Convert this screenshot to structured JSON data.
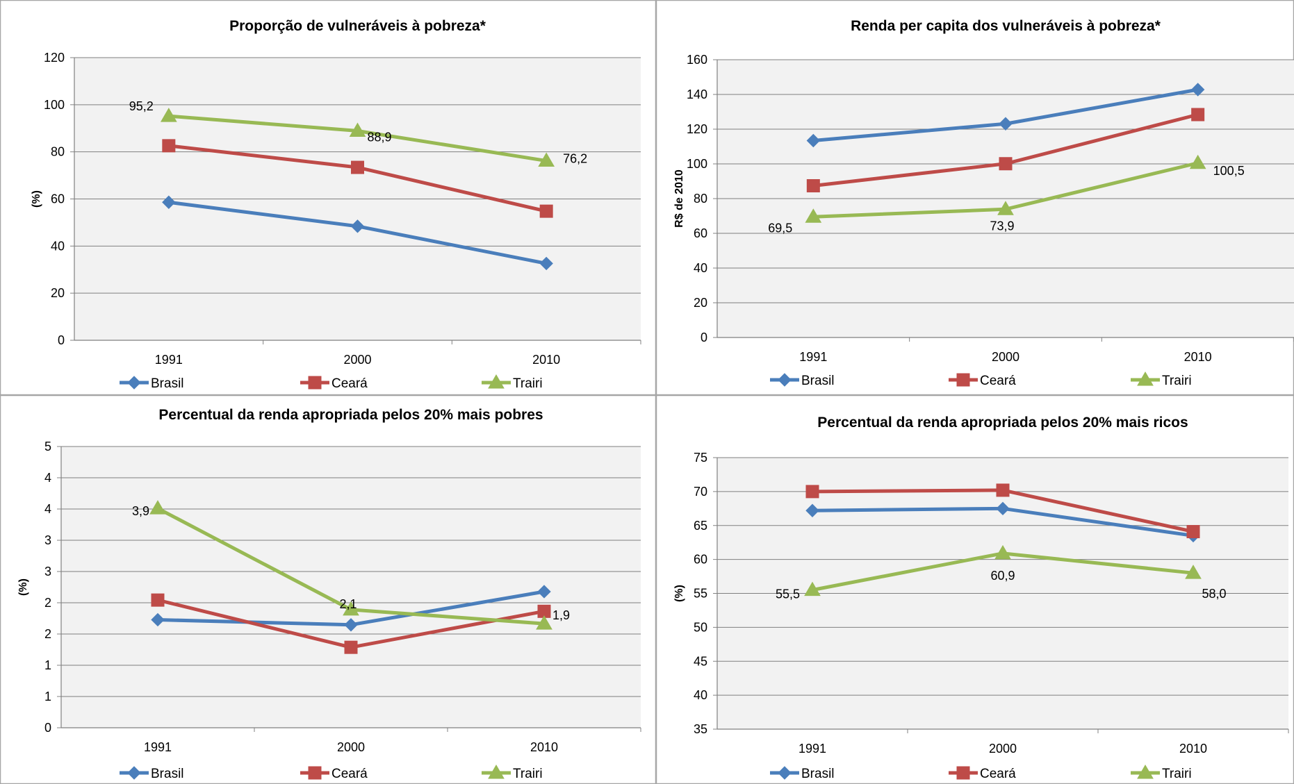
{
  "colors": {
    "Brasil": "#4a7ebb",
    "Ceará": "#be4b48",
    "Trairi": "#98b954",
    "plot_bg": "#f2f2f2",
    "grid": "#7f7f7f",
    "border": "#a6a6a6"
  },
  "chart_data": [
    {
      "type": "line",
      "title": "Proporção de vulneráveis à pobreza*",
      "xlabel": "",
      "ylabel": "(%)",
      "categories": [
        "1991",
        "2000",
        "2010"
      ],
      "ylim": [
        0,
        120
      ],
      "yticks": [
        "0",
        "20",
        "40",
        "60",
        "80",
        "100",
        "120"
      ],
      "grid": true,
      "legend": "bottom",
      "series": [
        {
          "name": "Brasil",
          "values": [
            58.6,
            48.4,
            32.6
          ],
          "marker": "diamond",
          "labels": [
            "",
            "",
            ""
          ]
        },
        {
          "name": "Ceará",
          "values": [
            82.6,
            73.4,
            54.8
          ],
          "marker": "square",
          "labels": [
            "",
            "",
            ""
          ]
        },
        {
          "name": "Trairi",
          "values": [
            95.2,
            88.9,
            76.2
          ],
          "marker": "triangle",
          "labels": [
            "95,2",
            "88,9",
            "76,2"
          ]
        }
      ]
    },
    {
      "type": "line",
      "title": "Renda per capita dos vulneráveis à pobreza*",
      "xlabel": "",
      "ylabel": "R$ de 2010",
      "categories": [
        "1991",
        "2000",
        "2010"
      ],
      "ylim": [
        0,
        160
      ],
      "yticks": [
        "0",
        "20",
        "40",
        "60",
        "80",
        "100",
        "120",
        "140",
        "160"
      ],
      "grid": true,
      "legend": "bottom",
      "series": [
        {
          "name": "Brasil",
          "values": [
            113.4,
            123.1,
            142.8
          ],
          "marker": "diamond",
          "labels": [
            "",
            "",
            ""
          ]
        },
        {
          "name": "Ceará",
          "values": [
            87.4,
            100.1,
            128.4
          ],
          "marker": "square",
          "labels": [
            "",
            "",
            ""
          ]
        },
        {
          "name": "Trairi",
          "values": [
            69.5,
            73.9,
            100.5
          ],
          "marker": "triangle",
          "labels": [
            "69,5",
            "73,9",
            "100,5"
          ]
        }
      ]
    },
    {
      "type": "line",
      "title": "Percentual da renda apropriada pelos 20% mais pobres",
      "xlabel": "",
      "ylabel": "(%)",
      "categories": [
        "1991",
        "2000",
        "2010"
      ],
      "ylim": [
        0,
        5
      ],
      "yticks": [
        "0",
        "1",
        "1",
        "2",
        "2",
        "3",
        "3",
        "4",
        "4",
        "5"
      ],
      "grid": true,
      "legend": "bottom",
      "series": [
        {
          "name": "Brasil",
          "values": [
            1.92,
            1.83,
            2.42
          ],
          "marker": "diamond",
          "labels": [
            "",
            "",
            ""
          ]
        },
        {
          "name": "Ceará",
          "values": [
            2.27,
            1.43,
            2.07
          ],
          "marker": "square",
          "labels": [
            "",
            "",
            ""
          ]
        },
        {
          "name": "Trairi",
          "values": [
            3.9,
            2.1,
            1.85
          ],
          "marker": "triangle",
          "labels": [
            "3,9",
            "2,1",
            "1,9"
          ]
        }
      ]
    },
    {
      "type": "line",
      "title": "Percentual da renda apropriada pelos 20% mais ricos",
      "xlabel": "",
      "ylabel": "(%)",
      "categories": [
        "1991",
        "2000",
        "2010"
      ],
      "ylim": [
        35,
        75
      ],
      "yticks": [
        "35",
        "40",
        "45",
        "50",
        "55",
        "60",
        "65",
        "70",
        "75"
      ],
      "grid": true,
      "legend": "bottom",
      "series": [
        {
          "name": "Brasil",
          "values": [
            67.2,
            67.5,
            63.5
          ],
          "marker": "diamond",
          "labels": [
            "",
            "",
            ""
          ]
        },
        {
          "name": "Ceará",
          "values": [
            70.0,
            70.2,
            64.1
          ],
          "marker": "square",
          "labels": [
            "",
            "",
            ""
          ]
        },
        {
          "name": "Trairi",
          "values": [
            55.5,
            60.9,
            58.0
          ],
          "marker": "triangle",
          "labels": [
            "55,5",
            "60,9",
            "58,0"
          ]
        }
      ]
    }
  ]
}
